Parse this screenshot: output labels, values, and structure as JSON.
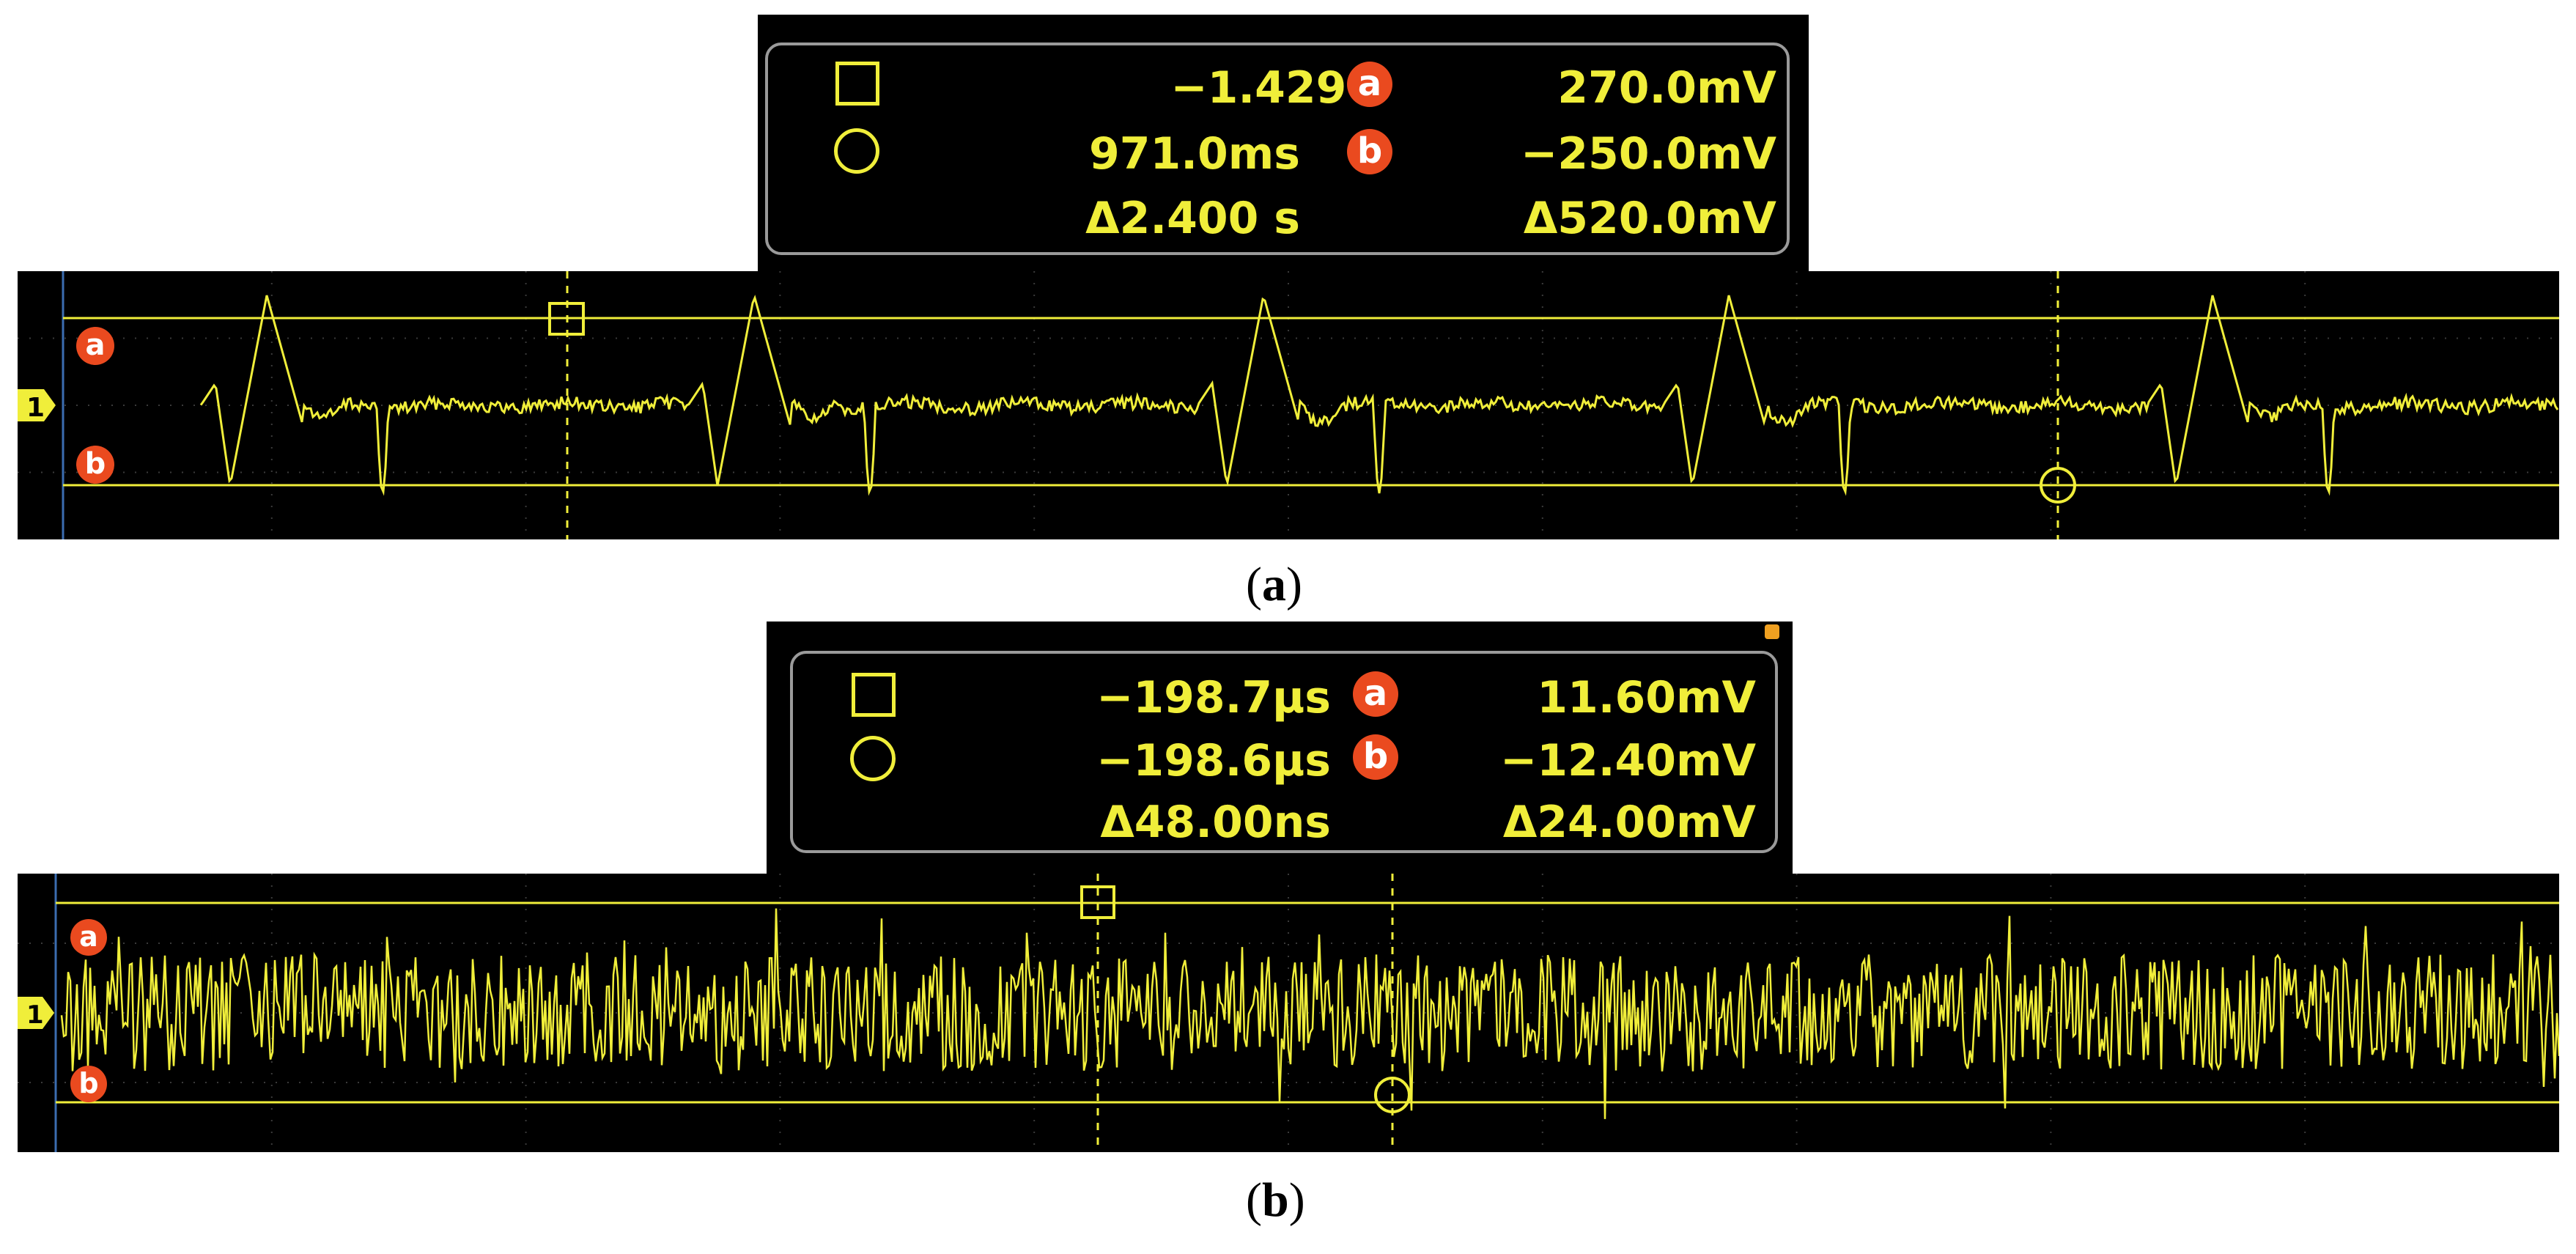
{
  "panel_a": {
    "readout": {
      "time_a": "−1.429 s",
      "time_b": "971.0ms",
      "time_delta": "Δ2.400 s",
      "volt_a": "270.0mV",
      "volt_b": "−250.0mV",
      "volt_delta": "Δ520.0mV",
      "badge_a": "a",
      "badge_b": "b"
    },
    "labels": {
      "cursor_a": "a",
      "cursor_b": "b",
      "channel": "1"
    },
    "caption_letter": "a"
  },
  "panel_b": {
    "readout": {
      "time_a": "−198.7µs",
      "time_b": "−198.6µs",
      "time_delta": "Δ48.00ns",
      "volt_a": "11.60mV",
      "volt_b": "−12.40mV",
      "volt_delta": "Δ24.00mV",
      "badge_a": "a",
      "badge_b": "b"
    },
    "labels": {
      "cursor_a": "a",
      "cursor_b": "b",
      "channel": "1"
    },
    "caption_letter": "b"
  },
  "colors": {
    "trace": "#f0ee3a",
    "cursor_badge": "#ea4a1f",
    "screen_bg": "#000000"
  }
}
